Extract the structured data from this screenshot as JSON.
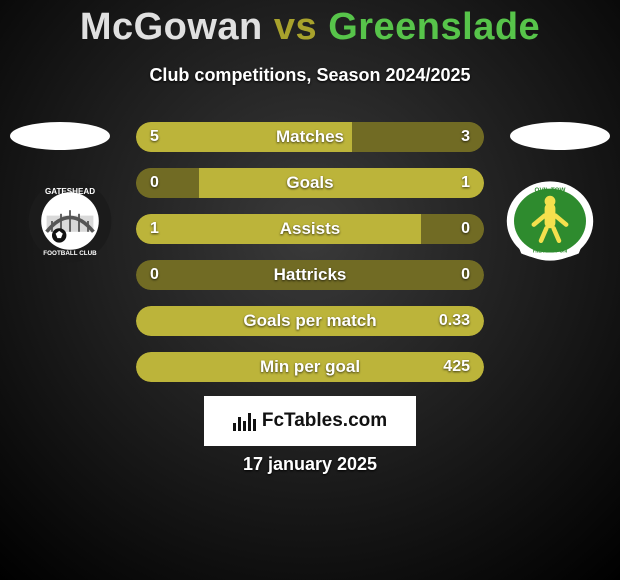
{
  "title_parts": {
    "left": "McGowan",
    "vs": "vs",
    "right": "Greenslade"
  },
  "title_colors": {
    "left": "#e0e0e0",
    "vs": "#a8a22c",
    "right": "#57c44a"
  },
  "subtitle": "Club competitions, Season 2024/2025",
  "track_color_default": "#716b24",
  "fill_color_left": "#bcb43a",
  "fill_color_right": "#bcb43a",
  "value_text_color": "#ffffff",
  "label_text_color": "#ffffff",
  "rows": [
    {
      "label": "Matches",
      "left": "5",
      "right": "3",
      "left_pct": 62,
      "right_pct": 38,
      "mode": "split"
    },
    {
      "label": "Goals",
      "left": "0",
      "right": "1",
      "left_pct": 18,
      "right_pct": 82,
      "mode": "split"
    },
    {
      "label": "Assists",
      "left": "1",
      "right": "0",
      "left_pct": 82,
      "right_pct": 18,
      "mode": "split"
    },
    {
      "label": "Hattricks",
      "left": "0",
      "right": "0",
      "left_pct": 0,
      "right_pct": 0,
      "mode": "empty"
    },
    {
      "label": "Goals per match",
      "left": "",
      "right": "0.33",
      "left_pct": 0,
      "right_pct": 100,
      "mode": "full"
    },
    {
      "label": "Min per goal",
      "left": "",
      "right": "425",
      "left_pct": 0,
      "right_pct": 100,
      "mode": "full"
    }
  ],
  "branding_text": "FcTables.com",
  "date_text": "17 january 2025",
  "crest_left": {
    "name": "gateshead-crest",
    "ring_color": "#1b1b1b",
    "ring_text_color": "#ffffff",
    "inner_bg": "#ffffff"
  },
  "crest_right": {
    "name": "yeovil-crest",
    "outer_color": "#ffffff",
    "field_color": "#2e8b2e",
    "accent_color": "#f4e04d"
  }
}
